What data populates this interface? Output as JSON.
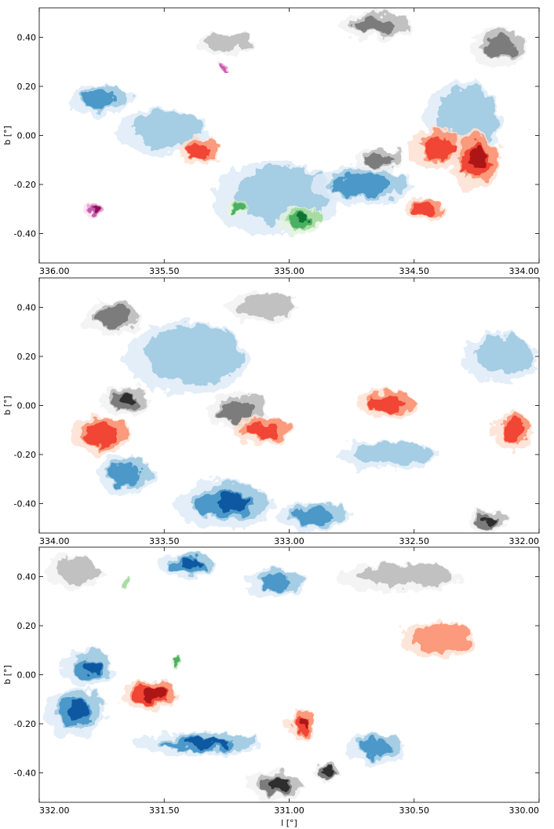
{
  "figure": {
    "colors": {
      "axis": "#000000",
      "background": "#ffffff",
      "gray_cmap": [
        "#f2f2f2",
        "#bdbdbd",
        "#737373",
        "#252525"
      ],
      "blue_cmap": [
        "#deebf7",
        "#9ecae1",
        "#4292c6",
        "#08519c"
      ],
      "red_cmap": [
        "#fee0d2",
        "#fc9272",
        "#ef3b2c",
        "#a50f15"
      ],
      "green_cmap": [
        "#e5f5e0",
        "#a1d99b",
        "#41ab5d",
        "#006d2c"
      ],
      "purple_cmap": [
        "#fde0ef",
        "#e7a3d3",
        "#c154a8",
        "#8e0152"
      ]
    }
  },
  "chart_data": [
    {
      "type": "heatmap",
      "panel": "top",
      "xlabel": "",
      "ylabel": "b [°]",
      "xlim": [
        336.0,
        334.0
      ],
      "ylim": [
        -0.52,
        0.52
      ],
      "x_ticks": [
        336.0,
        335.5,
        335.0,
        334.5,
        334.0
      ],
      "x_tick_labels": [
        "336.00",
        "335.50",
        "335.00",
        "334.50",
        "334.00"
      ],
      "y_ticks": [
        0.4,
        0.2,
        0.0,
        -0.2,
        -0.4
      ],
      "y_tick_labels": [
        "0.40",
        "0.20",
        "0.00",
        "-0.20",
        "-0.40"
      ],
      "grid": false,
      "clumps": [
        {
          "l": 335.25,
          "b": 0.38,
          "rx": 0.12,
          "ry": 0.05,
          "cmap": "gray",
          "level": 1
        },
        {
          "l": 334.65,
          "b": 0.45,
          "rx": 0.15,
          "ry": 0.06,
          "cmap": "gray",
          "level": 2
        },
        {
          "l": 334.15,
          "b": 0.36,
          "rx": 0.12,
          "ry": 0.08,
          "cmap": "gray",
          "level": 2
        },
        {
          "l": 335.75,
          "b": 0.15,
          "rx": 0.12,
          "ry": 0.07,
          "cmap": "blue",
          "level": 2
        },
        {
          "l": 335.5,
          "b": 0.02,
          "rx": 0.18,
          "ry": 0.1,
          "cmap": "blue",
          "level": 1
        },
        {
          "l": 335.05,
          "b": -0.25,
          "rx": 0.25,
          "ry": 0.15,
          "cmap": "blue",
          "level": 1
        },
        {
          "l": 334.7,
          "b": -0.2,
          "rx": 0.2,
          "ry": 0.08,
          "cmap": "blue",
          "level": 2
        },
        {
          "l": 334.3,
          "b": 0.05,
          "rx": 0.15,
          "ry": 0.18,
          "cmap": "blue",
          "level": 1
        },
        {
          "l": 335.35,
          "b": -0.06,
          "rx": 0.08,
          "ry": 0.06,
          "cmap": "red",
          "level": 2
        },
        {
          "l": 334.4,
          "b": -0.05,
          "rx": 0.12,
          "ry": 0.08,
          "cmap": "red",
          "level": 2
        },
        {
          "l": 334.25,
          "b": -0.1,
          "rx": 0.1,
          "ry": 0.12,
          "cmap": "red",
          "level": 3
        },
        {
          "l": 334.45,
          "b": -0.3,
          "rx": 0.08,
          "ry": 0.05,
          "cmap": "red",
          "level": 2
        },
        {
          "l": 334.95,
          "b": -0.34,
          "rx": 0.08,
          "ry": 0.06,
          "cmap": "green",
          "level": 3
        },
        {
          "l": 335.2,
          "b": -0.3,
          "rx": 0.04,
          "ry": 0.03,
          "cmap": "green",
          "level": 2
        },
        {
          "l": 335.78,
          "b": -0.3,
          "rx": 0.04,
          "ry": 0.03,
          "cmap": "purple",
          "level": 3
        },
        {
          "l": 335.26,
          "b": 0.28,
          "rx": 0.03,
          "ry": 0.015,
          "cmap": "purple",
          "level": 2
        },
        {
          "l": 334.64,
          "b": -0.1,
          "rx": 0.1,
          "ry": 0.05,
          "cmap": "gray",
          "level": 2
        }
      ]
    },
    {
      "type": "heatmap",
      "panel": "middle",
      "xlabel": "",
      "ylabel": "b [°]",
      "xlim": [
        334.0,
        332.0
      ],
      "ylim": [
        -0.52,
        0.52
      ],
      "x_ticks": [
        334.0,
        333.5,
        333.0,
        332.5,
        332.0
      ],
      "x_tick_labels": [
        "334.00",
        "333.50",
        "333.00",
        "332.50",
        "332.00"
      ],
      "y_ticks": [
        0.4,
        0.2,
        0.0,
        -0.2,
        -0.4
      ],
      "y_tick_labels": [
        "0.40",
        "0.20",
        "0.00",
        "-0.20",
        "-0.40"
      ],
      "grid": false,
      "clumps": [
        {
          "l": 333.7,
          "b": 0.36,
          "rx": 0.12,
          "ry": 0.07,
          "cmap": "gray",
          "level": 2
        },
        {
          "l": 333.1,
          "b": 0.4,
          "rx": 0.15,
          "ry": 0.06,
          "cmap": "gray",
          "level": 1
        },
        {
          "l": 333.65,
          "b": 0.02,
          "rx": 0.1,
          "ry": 0.06,
          "cmap": "gray",
          "level": 3
        },
        {
          "l": 333.2,
          "b": -0.02,
          "rx": 0.12,
          "ry": 0.08,
          "cmap": "gray",
          "level": 2
        },
        {
          "l": 332.15,
          "b": 0.2,
          "rx": 0.15,
          "ry": 0.1,
          "cmap": "blue",
          "level": 1
        },
        {
          "l": 333.4,
          "b": 0.2,
          "rx": 0.25,
          "ry": 0.15,
          "cmap": "blue",
          "level": 1
        },
        {
          "l": 333.25,
          "b": -0.4,
          "rx": 0.2,
          "ry": 0.1,
          "cmap": "blue",
          "level": 3
        },
        {
          "l": 332.9,
          "b": -0.45,
          "rx": 0.15,
          "ry": 0.06,
          "cmap": "blue",
          "level": 2
        },
        {
          "l": 333.65,
          "b": -0.28,
          "rx": 0.12,
          "ry": 0.08,
          "cmap": "blue",
          "level": 2
        },
        {
          "l": 333.75,
          "b": -0.12,
          "rx": 0.12,
          "ry": 0.08,
          "cmap": "red",
          "level": 2
        },
        {
          "l": 333.1,
          "b": -0.1,
          "rx": 0.12,
          "ry": 0.06,
          "cmap": "red",
          "level": 2
        },
        {
          "l": 332.6,
          "b": 0.01,
          "rx": 0.12,
          "ry": 0.06,
          "cmap": "red",
          "level": 2
        },
        {
          "l": 332.1,
          "b": -0.1,
          "rx": 0.08,
          "ry": 0.08,
          "cmap": "red",
          "level": 2
        },
        {
          "l": 332.2,
          "b": -0.47,
          "rx": 0.08,
          "ry": 0.05,
          "cmap": "gray",
          "level": 3
        },
        {
          "l": 332.6,
          "b": -0.2,
          "rx": 0.2,
          "ry": 0.06,
          "cmap": "blue",
          "level": 1
        }
      ]
    },
    {
      "type": "heatmap",
      "panel": "bottom",
      "xlabel": "l [°]",
      "ylabel": "b [°]",
      "xlim": [
        332.0,
        330.0
      ],
      "ylim": [
        -0.52,
        0.52
      ],
      "x_ticks": [
        332.0,
        331.5,
        331.0,
        330.5,
        330.0
      ],
      "x_tick_labels": [
        "332.00",
        "331.50",
        "331.00",
        "330.50",
        "330.00"
      ],
      "y_ticks": [
        0.4,
        0.2,
        0.0,
        -0.2,
        -0.4
      ],
      "y_tick_labels": [
        "0.40",
        "0.20",
        "0.00",
        "-0.20",
        "-0.40"
      ],
      "grid": false,
      "clumps": [
        {
          "l": 331.85,
          "b": 0.42,
          "rx": 0.12,
          "ry": 0.07,
          "cmap": "gray",
          "level": 1
        },
        {
          "l": 330.55,
          "b": 0.4,
          "rx": 0.25,
          "ry": 0.06,
          "cmap": "gray",
          "level": 1
        },
        {
          "l": 331.8,
          "b": 0.03,
          "rx": 0.1,
          "ry": 0.08,
          "cmap": "blue",
          "level": 3
        },
        {
          "l": 331.85,
          "b": -0.15,
          "rx": 0.12,
          "ry": 0.1,
          "cmap": "blue",
          "level": 3
        },
        {
          "l": 331.4,
          "b": 0.45,
          "rx": 0.12,
          "ry": 0.05,
          "cmap": "blue",
          "level": 3
        },
        {
          "l": 331.05,
          "b": 0.38,
          "rx": 0.12,
          "ry": 0.06,
          "cmap": "blue",
          "level": 2
        },
        {
          "l": 331.35,
          "b": -0.28,
          "rx": 0.25,
          "ry": 0.05,
          "cmap": "blue",
          "level": 3
        },
        {
          "l": 330.65,
          "b": -0.3,
          "rx": 0.12,
          "ry": 0.06,
          "cmap": "blue",
          "level": 2
        },
        {
          "l": 331.55,
          "b": -0.08,
          "rx": 0.12,
          "ry": 0.06,
          "cmap": "red",
          "level": 3
        },
        {
          "l": 330.95,
          "b": -0.2,
          "rx": 0.06,
          "ry": 0.06,
          "cmap": "red",
          "level": 3
        },
        {
          "l": 330.4,
          "b": 0.15,
          "rx": 0.15,
          "ry": 0.08,
          "cmap": "red",
          "level": 1
        },
        {
          "l": 331.05,
          "b": -0.45,
          "rx": 0.12,
          "ry": 0.06,
          "cmap": "gray",
          "level": 3
        },
        {
          "l": 330.85,
          "b": -0.4,
          "rx": 0.05,
          "ry": 0.04,
          "cmap": "gray",
          "level": 3
        },
        {
          "l": 331.65,
          "b": 0.38,
          "rx": 0.02,
          "ry": 0.02,
          "cmap": "green",
          "level": 1
        },
        {
          "l": 331.45,
          "b": 0.05,
          "rx": 0.02,
          "ry": 0.02,
          "cmap": "green",
          "level": 2
        }
      ]
    }
  ]
}
